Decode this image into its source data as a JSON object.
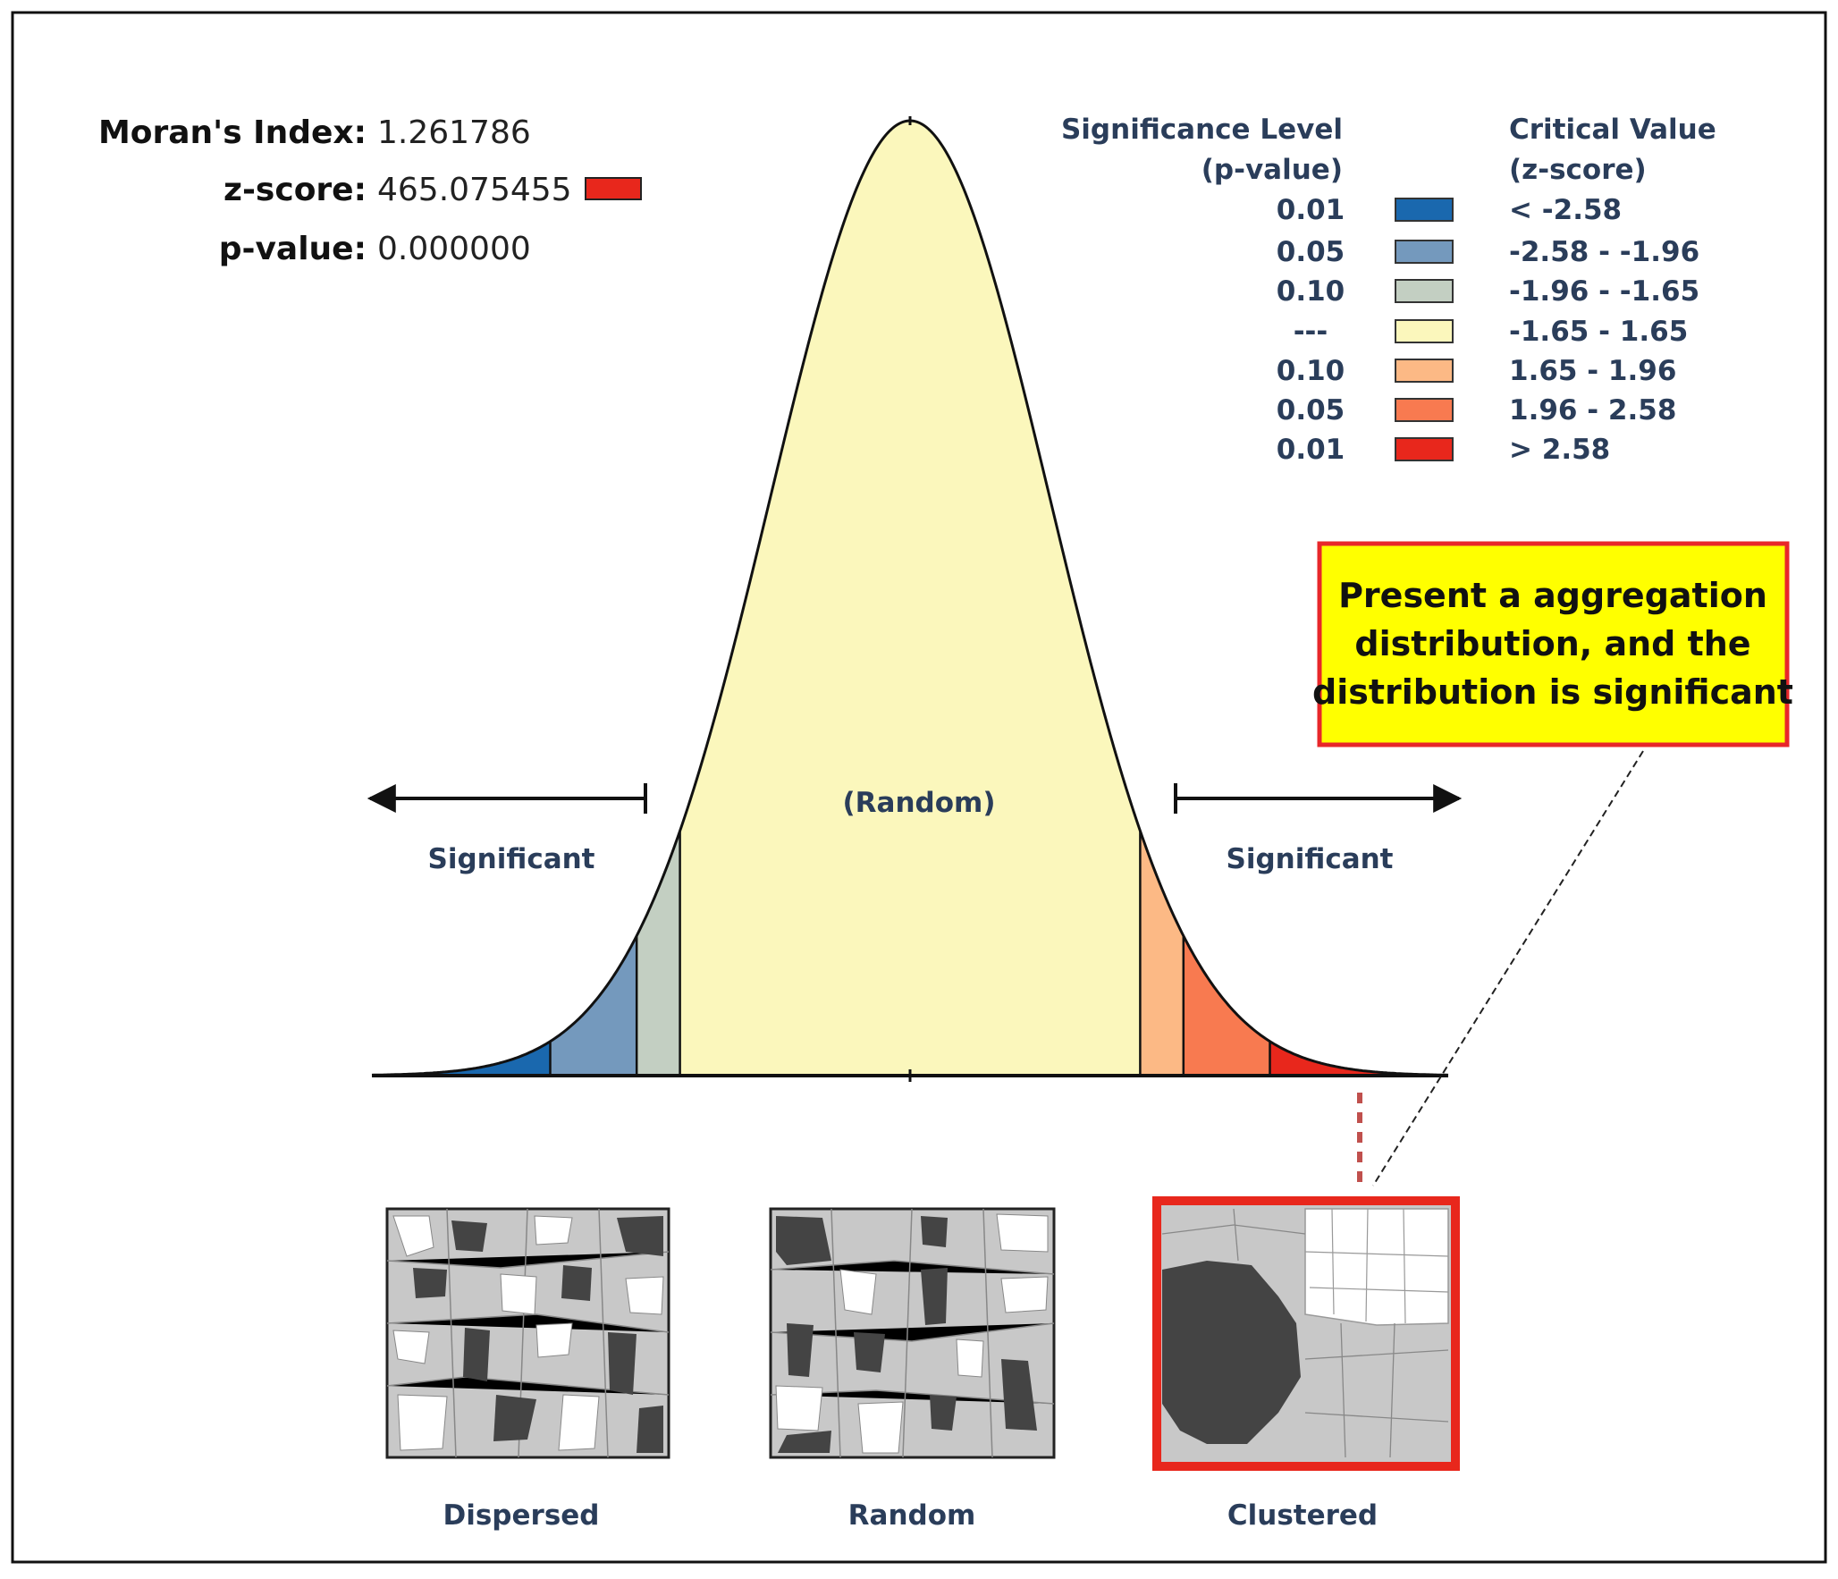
{
  "stats": {
    "moran_label": "Moran's Index:",
    "moran_value": "1.261786",
    "z_label": "z-score:",
    "z_value": "465.075455",
    "p_label": "p-value:",
    "p_value": "0.000000",
    "z_swatch_color": "#e8271c"
  },
  "legend": {
    "sig_header_1": "Significance Level",
    "sig_header_2": "(p-value)",
    "crit_header_1": "Critical Value",
    "crit_header_2": "(z-score)",
    "rows": [
      {
        "p": "0.01",
        "z": "< -2.58",
        "color": "#1a68ae"
      },
      {
        "p": "0.05",
        "z": "-2.58 - -1.96",
        "color": "#7499bd"
      },
      {
        "p": "0.10",
        "z": "-1.96 - -1.65",
        "color": "#c3cfc2"
      },
      {
        "p": "---",
        "z": "-1.65 - 1.65",
        "color": "#fbf7bc"
      },
      {
        "p": "0.10",
        "z": " 1.65 - 1.96",
        "color": "#fcb985"
      },
      {
        "p": "0.05",
        "z": " 1.96 - 2.58",
        "color": "#f87a50"
      },
      {
        "p": "0.01",
        "z": "> 2.58",
        "color": "#e8271c"
      }
    ]
  },
  "curve": {
    "random_label": "(Random)",
    "left_label": "Significant",
    "right_label": "Significant"
  },
  "callout": {
    "line1": "Present a aggregation",
    "line2": "distribution, and the",
    "line3": "distribution is significant",
    "bg_color": "#ffff00",
    "border_color": "#e8272a"
  },
  "maps": [
    {
      "label": "Dispersed"
    },
    {
      "label": "Random"
    },
    {
      "label": "Clustered"
    }
  ]
}
